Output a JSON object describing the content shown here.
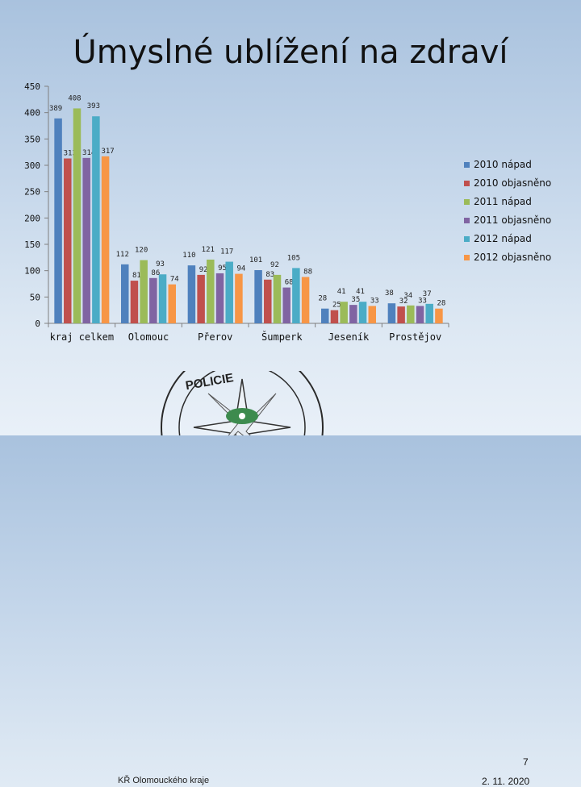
{
  "slide": {
    "title": "Úmyslné ublížení  na  zdraví",
    "page_number": "7",
    "organization": "KŘ Olomouckého kraje",
    "date": "2. 11. 2020",
    "emblem_text": "POLICIE"
  },
  "chart_data": {
    "type": "bar",
    "title": "",
    "xlabel": "",
    "ylabel": "",
    "ylim": [
      0,
      450
    ],
    "yticks": [
      0,
      50,
      100,
      150,
      200,
      250,
      300,
      350,
      400,
      450
    ],
    "grid": false,
    "legend_position": "right",
    "categories": [
      "kraj celkem",
      "Olomouc",
      "Přerov",
      "Šumperk",
      "Jeseník",
      "Prostějov"
    ],
    "series": [
      {
        "name": "2010 nápad",
        "color": "#4f81bd",
        "values": [
          389,
          112,
          110,
          101,
          28,
          38
        ]
      },
      {
        "name": "2010 objasněno",
        "color": "#c0504d",
        "values": [
          313,
          81,
          92,
          83,
          25,
          32
        ]
      },
      {
        "name": "2011 nápad",
        "color": "#9bbb59",
        "values": [
          408,
          120,
          121,
          92,
          41,
          34
        ]
      },
      {
        "name": "2011 objasněno",
        "color": "#8064a2",
        "values": [
          314,
          86,
          95,
          68,
          35,
          33
        ]
      },
      {
        "name": "2012 nápad",
        "color": "#4bacc6",
        "values": [
          393,
          93,
          117,
          105,
          41,
          37
        ]
      },
      {
        "name": "2012 objasněno",
        "color": "#f79646",
        "values": [
          317,
          74,
          94,
          88,
          33,
          28
        ]
      }
    ]
  }
}
